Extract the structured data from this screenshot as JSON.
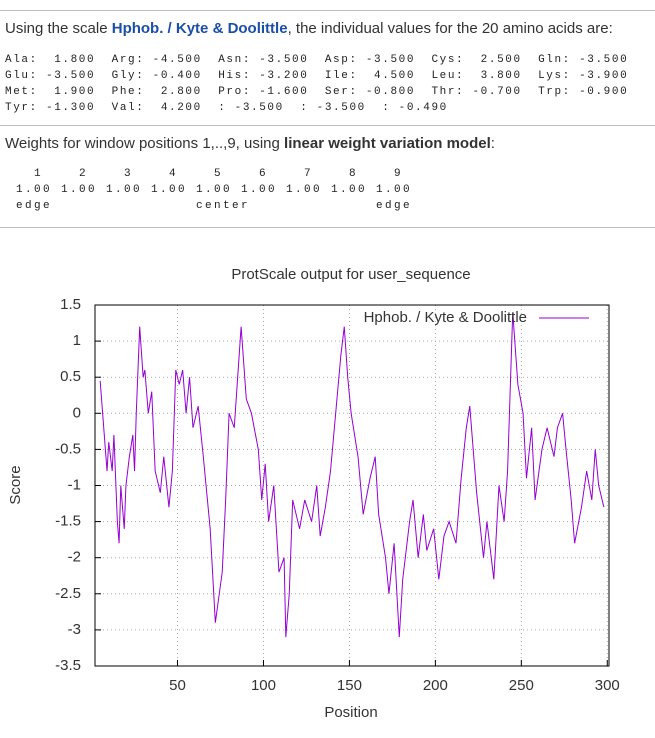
{
  "header": {
    "intro": "Using the scale ",
    "scale": "Hphob. / Kyte & Doolittle",
    "outro": ", the individual values for the 20 amino acids are:"
  },
  "amino_acid_lines": [
    "Ala:  1.800  Arg: -4.500  Asn: -3.500  Asp: -3.500  Cys:  2.500  Gln: -3.500",
    "Glu: -3.500  Gly: -0.400  His: -3.200  Ile:  4.500  Leu:  3.800  Lys: -3.900",
    "Met:  1.900  Phe:  2.800  Pro: -1.600  Ser: -0.800  Thr: -0.700  Trp: -0.900",
    "Tyr: -1.300  Val:  4.200  : -3.500  : -3.500  : -0.490"
  ],
  "weights": {
    "intro": "Weights for window positions 1,..,9, using ",
    "model": "linear weight variation model",
    "outro": ":",
    "lines": [
      "   1    2    3    4    5    6    7    8    9",
      " 1.00 1.00 1.00 1.00 1.00 1.00 1.00 1.00 1.00",
      " edge                center              edge"
    ]
  },
  "chart_data": {
    "type": "line",
    "title": "ProtScale output for user_sequence",
    "xlabel": "Position",
    "ylabel": "Score",
    "xlim": [
      2,
      301
    ],
    "ylim": [
      -3.5,
      1.5
    ],
    "xticks": [
      50,
      100,
      150,
      200,
      250,
      300
    ],
    "yticks": [
      -3.5,
      -3,
      -2.5,
      -2,
      -1.5,
      -1,
      -0.5,
      0,
      0.5,
      1,
      1.5
    ],
    "grid": true,
    "legend": "upper right",
    "series": [
      {
        "name": "Hphob. / Kyte & Doolittle",
        "color": "#9400d3",
        "x": [
          5,
          9,
          10,
          12,
          13,
          15,
          16,
          17,
          19,
          20,
          22,
          24,
          25,
          26,
          28,
          30,
          31,
          33,
          35,
          37,
          40,
          42,
          45,
          47,
          49,
          51,
          53,
          55,
          57,
          59,
          62,
          65,
          69,
          72,
          76,
          78,
          80,
          83,
          85,
          87,
          90,
          93,
          97,
          99,
          101,
          103,
          106,
          109,
          112,
          113,
          115,
          117,
          121,
          124,
          128,
          131,
          133,
          136,
          139,
          142,
          145,
          147,
          149,
          151,
          155,
          158,
          162,
          165,
          167,
          171,
          173,
          176,
          179,
          181,
          185,
          187,
          190,
          193,
          195,
          199,
          202,
          205,
          208,
          212,
          215,
          218,
          220,
          222,
          224,
          228,
          230,
          234,
          237,
          240,
          242,
          245,
          248,
          251,
          253,
          256,
          258,
          262,
          265,
          269,
          271,
          274,
          276,
          279,
          281,
          285,
          288,
          291,
          293,
          295,
          298
        ],
        "values": [
          0.45,
          -0.8,
          -0.4,
          -0.8,
          -0.3,
          -1.5,
          -1.8,
          -1.0,
          -1.6,
          -1.0,
          -0.6,
          -0.3,
          -0.8,
          0.0,
          1.2,
          0.5,
          0.6,
          0.0,
          0.3,
          -0.8,
          -1.1,
          -0.6,
          -1.3,
          -0.8,
          0.6,
          0.4,
          0.6,
          0.0,
          0.5,
          -0.2,
          0.1,
          -0.6,
          -1.6,
          -2.9,
          -2.2,
          -1.2,
          0.0,
          -0.2,
          0.5,
          1.2,
          0.2,
          0.0,
          -0.5,
          -1.2,
          -0.7,
          -1.5,
          -1.0,
          -2.2,
          -2.0,
          -3.1,
          -2.5,
          -1.2,
          -1.6,
          -1.2,
          -1.5,
          -1.0,
          -1.7,
          -1.3,
          -0.8,
          0.0,
          0.8,
          1.2,
          0.5,
          0.0,
          -0.6,
          -1.4,
          -0.9,
          -0.6,
          -1.4,
          -2.0,
          -2.5,
          -1.8,
          -3.1,
          -2.3,
          -1.5,
          -1.2,
          -2.0,
          -1.4,
          -1.9,
          -1.6,
          -2.3,
          -1.7,
          -1.5,
          -1.8,
          -0.9,
          -0.2,
          0.1,
          -0.5,
          -1.1,
          -2.0,
          -1.5,
          -2.3,
          -1.0,
          -1.5,
          -0.8,
          1.4,
          0.4,
          0.0,
          -0.9,
          -0.2,
          -1.2,
          -0.5,
          -0.2,
          -0.6,
          -0.2,
          0.0,
          -0.5,
          -1.2,
          -1.8,
          -1.3,
          -0.8,
          -1.2,
          -0.5,
          -1.0,
          -1.3
        ]
      }
    ]
  }
}
